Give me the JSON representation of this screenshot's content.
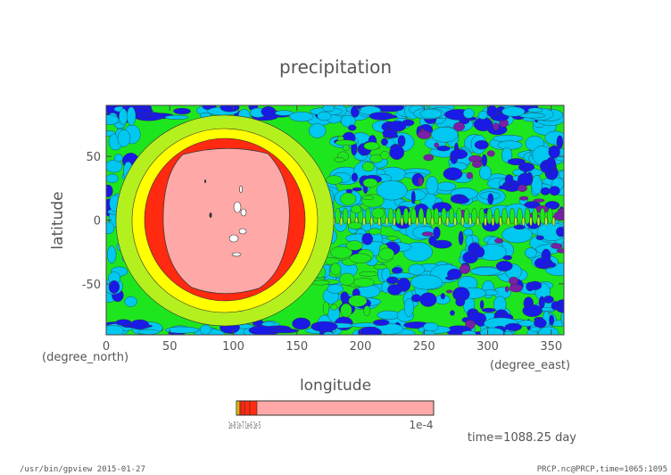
{
  "chart_data": {
    "type": "heatmap",
    "title": "precipitation",
    "xlabel": "longitude",
    "ylabel": "latitude",
    "x_unit": "(degree_east)",
    "y_unit": "(degree_north)",
    "xlim": [
      0,
      360
    ],
    "ylim": [
      -90,
      90
    ],
    "x_ticks": [
      0,
      50,
      100,
      150,
      200,
      250,
      300,
      350
    ],
    "y_ticks": [
      -50,
      0,
      50
    ],
    "colorbar": {
      "tick_labels": [
        "1e-8",
        "1e-7",
        "1e-6",
        "1e-5",
        "1e-4"
      ],
      "left_label": "1e-8 1e-7 1e-6 1e-5",
      "right_label": "1e-4"
    },
    "levels": [
      {
        "name": "level-1",
        "color": "#7a1fa8"
      },
      {
        "name": "level-2",
        "color": "#1a1ae6"
      },
      {
        "name": "level-3",
        "color": "#00c8f0"
      },
      {
        "name": "level-4",
        "color": "#1ee61e"
      },
      {
        "name": "level-5",
        "color": "#b4f01e"
      },
      {
        "name": "level-6",
        "color": "#ffff00"
      },
      {
        "name": "level-7",
        "color": "#ff2a10"
      },
      {
        "name": "level-8",
        "color": "#ffa8a8"
      }
    ],
    "time_label": "time=1088.25 day"
  },
  "footer": {
    "left": "/usr/bin/gpview  2015-01-27",
    "right": "PRCP.nc@PRCP,time=1065:1095"
  }
}
